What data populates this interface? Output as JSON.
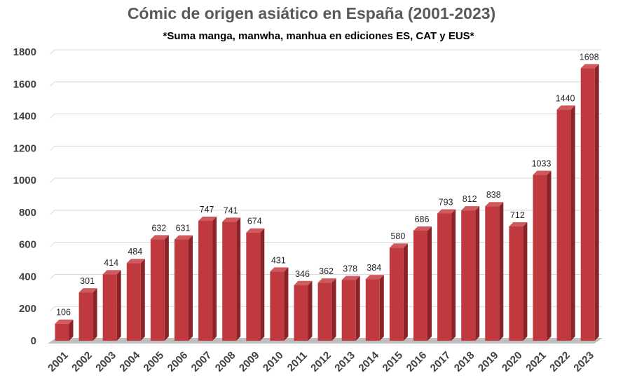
{
  "chart_data": {
    "type": "bar",
    "title": "Cómic de origen asiático en España (2001-2023)",
    "subtitle": "*Suma manga, manwha, manhua en ediciones ES, CAT y EUS*",
    "xlabel": "",
    "ylabel": "",
    "ylim": [
      0,
      1800
    ],
    "yticks": [
      0,
      200,
      400,
      600,
      800,
      1000,
      1200,
      1400,
      1600,
      1800
    ],
    "grid": true,
    "legend": "none",
    "bar_color": "#C0393F",
    "bar_side_color": "#8B2428",
    "bar_top_color": "#D0595E",
    "categories": [
      "2001",
      "2002",
      "2003",
      "2004",
      "2005",
      "2006",
      "2007",
      "2008",
      "2009",
      "2010",
      "2011",
      "2012",
      "2013",
      "2014",
      "2015",
      "2016",
      "2017",
      "2018",
      "2019",
      "2020",
      "2021",
      "2022",
      "2023"
    ],
    "series": [
      {
        "values": [
          106,
          301,
          414,
          484,
          632,
          631,
          747,
          741,
          674,
          431,
          346,
          362,
          378,
          384,
          580,
          686,
          793,
          812,
          838,
          712,
          1033,
          1440,
          1698
        ]
      }
    ]
  }
}
